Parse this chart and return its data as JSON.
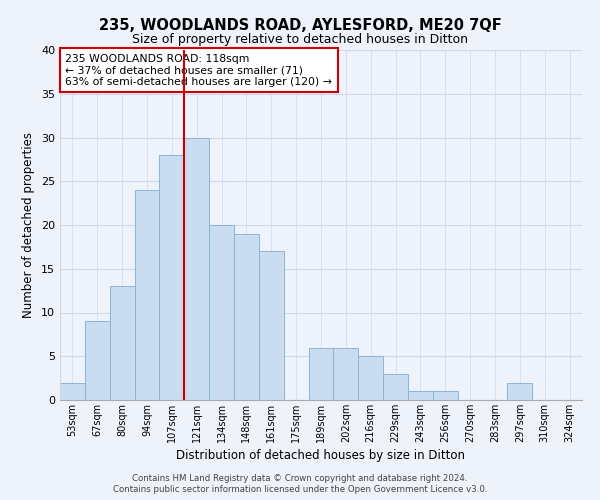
{
  "title": "235, WOODLANDS ROAD, AYLESFORD, ME20 7QF",
  "subtitle": "Size of property relative to detached houses in Ditton",
  "xlabel": "Distribution of detached houses by size in Ditton",
  "ylabel": "Number of detached properties",
  "bin_labels": [
    "53sqm",
    "67sqm",
    "80sqm",
    "94sqm",
    "107sqm",
    "121sqm",
    "134sqm",
    "148sqm",
    "161sqm",
    "175sqm",
    "189sqm",
    "202sqm",
    "216sqm",
    "229sqm",
    "243sqm",
    "256sqm",
    "270sqm",
    "283sqm",
    "297sqm",
    "310sqm",
    "324sqm"
  ],
  "bar_values": [
    2,
    9,
    13,
    24,
    28,
    30,
    20,
    19,
    17,
    0,
    6,
    6,
    5,
    3,
    1,
    1,
    0,
    0,
    2,
    0,
    0
  ],
  "bar_color": "#c9dcf0",
  "bar_edge_color": "#8ab4d8",
  "vline_x_index": 5,
  "vline_color": "#cc0000",
  "annotation_text": "235 WOODLANDS ROAD: 118sqm\n← 37% of detached houses are smaller (71)\n63% of semi-detached houses are larger (120) →",
  "annotation_box_color": "white",
  "annotation_box_edge_color": "#cc0000",
  "ylim": [
    0,
    40
  ],
  "yticks": [
    0,
    5,
    10,
    15,
    20,
    25,
    30,
    35,
    40
  ],
  "grid_color": "#d0d8e8",
  "background_color": "#eef2fa",
  "footer_line1": "Contains HM Land Registry data © Crown copyright and database right 2024.",
  "footer_line2": "Contains public sector information licensed under the Open Government Licence v3.0."
}
